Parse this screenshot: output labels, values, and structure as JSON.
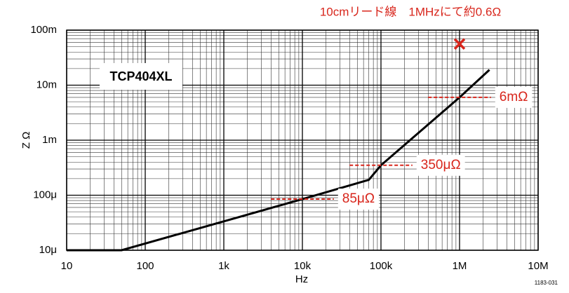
{
  "chart_data": {
    "type": "line",
    "log_x": true,
    "log_y": true,
    "grid": true,
    "minor_grid": true,
    "title": "10cmリード線　1MHzにて約0.6Ω",
    "label_box": "TCP404XL",
    "xlabel": "Hz",
    "ylabel": "Z Ω",
    "figure_id": "1183-031",
    "color": "#000000",
    "x": [
      10,
      50,
      10000,
      70000,
      100000,
      1000000,
      2400000
    ],
    "values": [
      1e-05,
      1e-05,
      8.5e-05,
      0.00019,
      0.00035,
      0.006,
      0.019
    ],
    "xlim": [
      10,
      10000000
    ],
    "ylim": [
      1e-05,
      0.1
    ],
    "xticks": [
      10,
      100,
      {
        "value": 1000,
        "label": "1k"
      },
      {
        "value": 10000,
        "label": "10k"
      },
      {
        "value": 100000,
        "label": "100k"
      },
      {
        "value": 1000000,
        "label": "1M"
      },
      {
        "value": 10000000,
        "label": "10M"
      }
    ],
    "yticks": [
      {
        "value": 1e-05,
        "label": "10μ"
      },
      {
        "value": 0.0001,
        "label": "100μ"
      },
      {
        "value": 0.001,
        "label": "1m"
      },
      {
        "value": 0.01,
        "label": "10m"
      },
      {
        "value": 0.1,
        "label": "100m"
      }
    ],
    "annotation_color": "#d8261c",
    "marker": {
      "x": 1000000,
      "y": 0.056
    },
    "annotations": [
      {
        "text": "85μΩ",
        "x": 10000,
        "y": 8.5e-05
      },
      {
        "text": "350μΩ",
        "x": 100000,
        "y": 0.00035
      },
      {
        "text": "6mΩ",
        "x": 1000000,
        "y": 0.006
      }
    ]
  }
}
